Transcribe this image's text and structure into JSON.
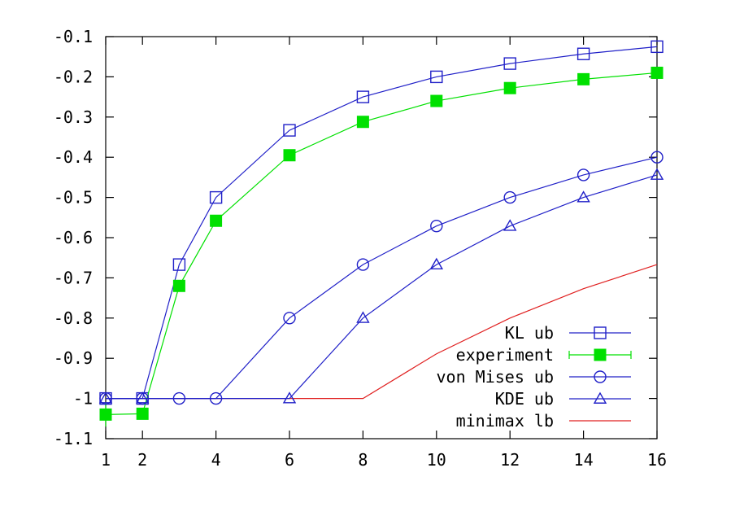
{
  "chart_data": {
    "type": "line",
    "title": "",
    "xlabel": "",
    "ylabel": "",
    "xlim": [
      1,
      16
    ],
    "ylim": [
      -1.1,
      -0.1
    ],
    "xticks": [
      1,
      2,
      4,
      6,
      8,
      10,
      12,
      14,
      16
    ],
    "yticks": [
      -1.1,
      -1,
      -0.9,
      -0.8,
      -0.7,
      -0.6,
      -0.5,
      -0.4,
      -0.3,
      -0.2,
      -0.1
    ],
    "ytick_labels": [
      "-1.1",
      "-1",
      "-0.9",
      "-0.8",
      "-0.7",
      "-0.6",
      "-0.5",
      "-0.4",
      "-0.3",
      "-0.2",
      "-0.1"
    ],
    "grid": false,
    "legend_position": "bottom-right",
    "series": [
      {
        "name": "KL ub",
        "color": "#2020c8",
        "marker": "open-square",
        "x": [
          1,
          2,
          3,
          4,
          6,
          8,
          10,
          12,
          14,
          16
        ],
        "y": [
          -1.0,
          -1.0,
          -0.667,
          -0.5,
          -0.333,
          -0.25,
          -0.2,
          -0.167,
          -0.143,
          -0.125
        ]
      },
      {
        "name": "experiment",
        "color": "#00e000",
        "marker": "filled-square",
        "error_bars": true,
        "x": [
          1,
          2,
          3,
          4,
          6,
          8,
          10,
          12,
          14,
          16
        ],
        "y": [
          -1.04,
          -1.038,
          -0.72,
          -0.558,
          -0.395,
          -0.312,
          -0.26,
          -0.228,
          -0.206,
          -0.19
        ],
        "err": [
          0.03,
          0.01,
          0.008,
          0.006,
          0.004,
          0.003,
          0.003,
          0.002,
          0.002,
          0.002
        ]
      },
      {
        "name": "von Mises ub",
        "color": "#2020c8",
        "marker": "open-circle",
        "x": [
          1,
          2,
          3,
          4,
          6,
          8,
          10,
          12,
          14,
          16
        ],
        "y": [
          -1.0,
          -1.0,
          -1.0,
          -1.0,
          -0.8,
          -0.667,
          -0.571,
          -0.5,
          -0.444,
          -0.4
        ]
      },
      {
        "name": "KDE ub",
        "color": "#2020c8",
        "marker": "open-triangle",
        "x": [
          1,
          2,
          6,
          8,
          10,
          12,
          14,
          16
        ],
        "y": [
          -1.0,
          -1.0,
          -1.0,
          -0.8,
          -0.667,
          -0.571,
          -0.5,
          -0.444
        ]
      },
      {
        "name": "minimax lb",
        "color": "#e02020",
        "marker": "none",
        "x": [
          1,
          2,
          4,
          6,
          8,
          10,
          12,
          14,
          16
        ],
        "y": [
          -1.0,
          -1.0,
          -1.0,
          -1.0,
          -1.0,
          -0.889,
          -0.8,
          -0.727,
          -0.667
        ]
      }
    ]
  }
}
